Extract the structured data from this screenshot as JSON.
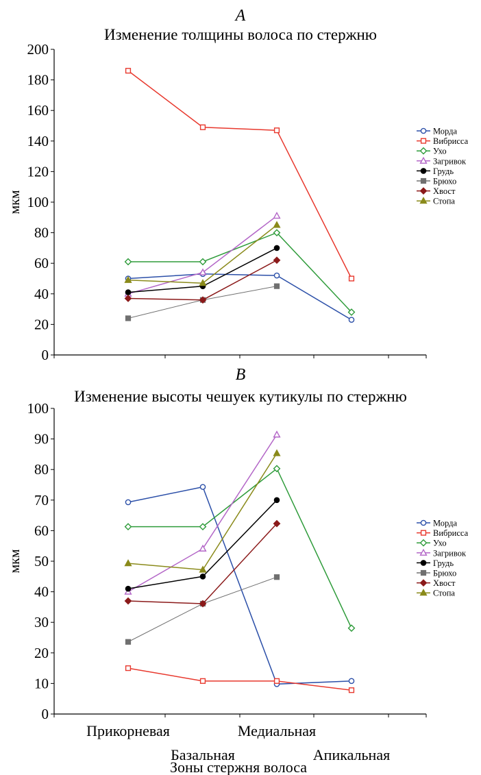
{
  "chart_data": [
    {
      "type": "line",
      "panel_letter": "A",
      "title": "Изменение толщины волоса по стержню",
      "ylabel": "мкм",
      "ylim": [
        0,
        200
      ],
      "yticks": [
        0,
        20,
        40,
        60,
        80,
        100,
        120,
        140,
        160,
        180,
        200
      ],
      "categories": [
        "Прикорневая",
        "Базальная",
        "Медиальная",
        "Апикальная"
      ],
      "legend_position": "right",
      "grid": false,
      "series": [
        {
          "name": "Морда",
          "color": "#2b4fa8",
          "marker": "circle-open",
          "values": [
            50,
            53,
            52,
            23
          ]
        },
        {
          "name": "Вибрисса",
          "color": "#e8382d",
          "marker": "square-open",
          "values": [
            186,
            149,
            147,
            50
          ]
        },
        {
          "name": "Ухо",
          "color": "#2e9b3a",
          "marker": "diamond-open",
          "values": [
            61,
            61,
            80,
            28
          ]
        },
        {
          "name": "Загривок",
          "color": "#b366c7",
          "marker": "triangle-open",
          "values": [
            40,
            54,
            91,
            null
          ]
        },
        {
          "name": "Грудь",
          "color": "#000000",
          "marker": "circle-filled",
          "values": [
            41,
            45,
            70,
            null
          ]
        },
        {
          "name": "Брюхо",
          "color": "#707070",
          "marker": "square-filled",
          "values": [
            24,
            36,
            45,
            null
          ]
        },
        {
          "name": "Хвост",
          "color": "#8b1a1a",
          "marker": "diamond-filled",
          "values": [
            37,
            36,
            62,
            null
          ]
        },
        {
          "name": "Стопа",
          "color": "#8a8a1a",
          "marker": "triangle-filled",
          "values": [
            49,
            47,
            85,
            null
          ]
        }
      ]
    },
    {
      "type": "line",
      "panel_letter": "B",
      "title": "Изменение высоты чешуек  кутикулы по стержню",
      "ylabel": "мкм",
      "xlabel": "Зоны стержня волоса",
      "ylim": [
        0,
        100
      ],
      "yticks": [
        0,
        10,
        20,
        30,
        40,
        50,
        60,
        70,
        80,
        90,
        100
      ],
      "categories": [
        "Прикорневая",
        "Базальная",
        "Медиальная",
        "Апикальная"
      ],
      "legend_position": "right",
      "grid": false,
      "series": [
        {
          "name": "Морда",
          "color": "#2b4fa8",
          "marker": "circle-open",
          "values": [
            69.3,
            74.3,
            9.8,
            10.8
          ]
        },
        {
          "name": "Вибрисса",
          "color": "#e8382d",
          "marker": "square-open",
          "values": [
            15,
            10.8,
            10.8,
            7.8
          ]
        },
        {
          "name": "Ухо",
          "color": "#2e9b3a",
          "marker": "diamond-open",
          "values": [
            61.3,
            61.3,
            80.3,
            28.1
          ]
        },
        {
          "name": "Загривок",
          "color": "#b366c7",
          "marker": "triangle-open",
          "values": [
            40,
            54.1,
            91.4,
            null
          ]
        },
        {
          "name": "Грудь",
          "color": "#000000",
          "marker": "circle-filled",
          "values": [
            41,
            45,
            70,
            null
          ]
        },
        {
          "name": "Брюхо",
          "color": "#707070",
          "marker": "square-filled",
          "values": [
            23.6,
            36.1,
            44.8,
            null
          ]
        },
        {
          "name": "Хвост",
          "color": "#8b1a1a",
          "marker": "diamond-filled",
          "values": [
            37,
            36.1,
            62.3,
            null
          ]
        },
        {
          "name": "Стопа",
          "color": "#8a8a1a",
          "marker": "triangle-filled",
          "values": [
            49.3,
            47.2,
            85.3,
            null
          ]
        }
      ]
    }
  ]
}
